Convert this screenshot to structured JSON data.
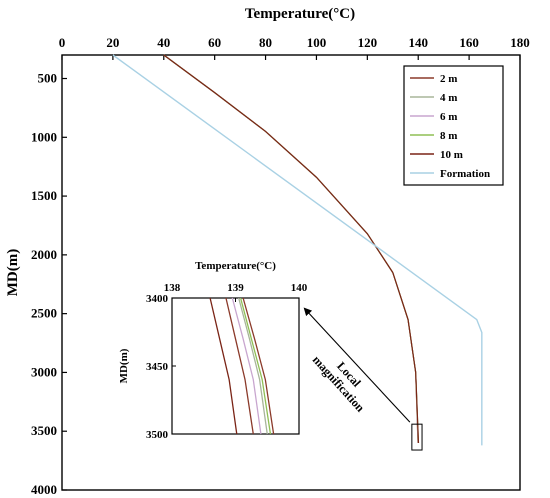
{
  "chart_data": {
    "type": "line",
    "xlabel": "Temperature(°C)",
    "ylabel": "MD(m)",
    "xlim": [
      0,
      180
    ],
    "ylim": [
      4000,
      300
    ],
    "x_ticks": [
      0,
      20,
      40,
      60,
      80,
      100,
      120,
      140,
      160,
      180
    ],
    "y_ticks": [
      500,
      1000,
      1500,
      2000,
      2500,
      3000,
      3500,
      4000
    ],
    "legend_position": "top-right",
    "colors": {
      "c2": "#8b3a2a",
      "c4": "#a8b59a",
      "c6": "#c8a6cf",
      "c8": "#8fbf55",
      "c10": "#7a2416",
      "formation": "#a9d1e4"
    },
    "series": [
      {
        "name": "2 m",
        "color_key": "c2",
        "points": [
          [
            40,
            300
          ],
          [
            60,
            620
          ],
          [
            80,
            950
          ],
          [
            100,
            1340
          ],
          [
            120,
            1820
          ],
          [
            130,
            2150
          ],
          [
            136,
            2550
          ],
          [
            139,
            3000
          ],
          [
            139.9,
            3600
          ]
        ]
      },
      {
        "name": "4 m",
        "color_key": "c4",
        "points": [
          [
            40,
            300
          ],
          [
            60,
            620
          ],
          [
            80,
            950
          ],
          [
            100,
            1340
          ],
          [
            120,
            1820
          ],
          [
            130,
            2150
          ],
          [
            136,
            2550
          ],
          [
            139,
            3000
          ],
          [
            140,
            3600
          ]
        ]
      },
      {
        "name": "6 m",
        "color_key": "c6",
        "points": [
          [
            40,
            300
          ],
          [
            60,
            620
          ],
          [
            80,
            950
          ],
          [
            100,
            1340
          ],
          [
            120,
            1820
          ],
          [
            130,
            2150
          ],
          [
            136,
            2550
          ],
          [
            139,
            3000
          ],
          [
            140,
            3600
          ]
        ]
      },
      {
        "name": "8 m",
        "color_key": "c8",
        "points": [
          [
            40,
            300
          ],
          [
            60,
            620
          ],
          [
            80,
            950
          ],
          [
            100,
            1340
          ],
          [
            120,
            1820
          ],
          [
            130,
            2150
          ],
          [
            136,
            2550
          ],
          [
            139,
            3000
          ],
          [
            140.1,
            3600
          ]
        ]
      },
      {
        "name": "10 m",
        "color_key": "c10",
        "points": [
          [
            40,
            300
          ],
          [
            60,
            620
          ],
          [
            80,
            950
          ],
          [
            100,
            1340
          ],
          [
            120,
            1820
          ],
          [
            130,
            2150
          ],
          [
            136,
            2550
          ],
          [
            139,
            3000
          ],
          [
            140.1,
            3600
          ]
        ]
      },
      {
        "name": "Formation",
        "color_key": "formation",
        "points": [
          [
            20,
            300
          ],
          [
            163,
            2550
          ],
          [
            165,
            2660
          ],
          [
            165,
            3620
          ]
        ]
      }
    ],
    "inset": {
      "xlabel": "Temperature(°C)",
      "ylabel": "MD(m)",
      "xlim": [
        138,
        140
      ],
      "ylim": [
        3400,
        3500
      ],
      "x_ticks": [
        138,
        139,
        140
      ],
      "y_ticks": [
        3400,
        3450,
        3500
      ],
      "series": [
        {
          "name": "2 m",
          "color_key": "c2",
          "points": [
            [
              138.85,
              3400
            ],
            [
              139.0,
              3430
            ],
            [
              139.15,
              3460
            ],
            [
              139.28,
              3500
            ]
          ]
        },
        {
          "name": "10 m",
          "color_key": "c10",
          "points": [
            [
              138.6,
              3400
            ],
            [
              138.75,
              3430
            ],
            [
              138.9,
              3460
            ],
            [
              139.02,
              3500
            ]
          ]
        },
        {
          "name": "6 m",
          "color_key": "c6",
          "points": [
            [
              138.95,
              3400
            ],
            [
              139.12,
              3430
            ],
            [
              139.28,
              3460
            ],
            [
              139.4,
              3500
            ]
          ]
        },
        {
          "name": "4 m",
          "color_key": "c4",
          "points": [
            [
              139.05,
              3400
            ],
            [
              139.22,
              3430
            ],
            [
              139.38,
              3460
            ],
            [
              139.5,
              3500
            ]
          ]
        },
        {
          "name": "8 m",
          "color_key": "c8",
          "points": [
            [
              139.08,
              3400
            ],
            [
              139.25,
              3430
            ],
            [
              139.42,
              3460
            ],
            [
              139.55,
              3500
            ]
          ]
        },
        {
          "name": "",
          "color_key": "c2",
          "points": [
            [
              139.12,
              3400
            ],
            [
              139.3,
              3430
            ],
            [
              139.47,
              3460
            ],
            [
              139.6,
              3500
            ]
          ]
        }
      ]
    },
    "annotation": [
      "Local",
      "magnification"
    ]
  }
}
